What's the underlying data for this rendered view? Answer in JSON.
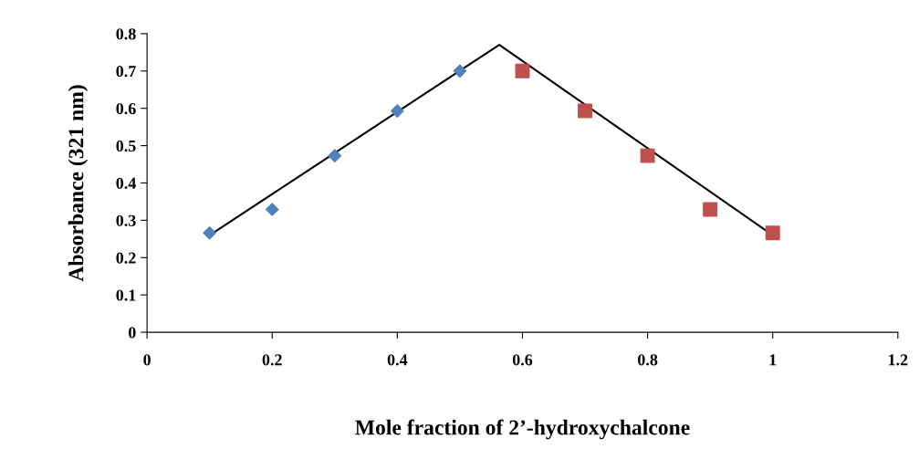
{
  "chart_data": {
    "type": "scatter",
    "xlabel": "Mole fraction of 2’-hydroxychalcone",
    "ylabel": "Absorbance (321 nm)",
    "xlim": [
      0,
      1.2
    ],
    "xticks": [
      0,
      0.2,
      0.4,
      0.6,
      0.8,
      1,
      1.2
    ],
    "ylim": [
      0,
      0.8
    ],
    "yticks": [
      0,
      0.1,
      0.2,
      0.3,
      0.4,
      0.5,
      0.6,
      0.7,
      0.8
    ],
    "grid": false,
    "legend": false,
    "series": [
      {
        "marker": "diamond",
        "color": "#4f81bd",
        "x": [
          0.1,
          0.2,
          0.3,
          0.4,
          0.5
        ],
        "values": [
          0.266,
          0.329,
          0.473,
          0.593,
          0.7
        ]
      },
      {
        "marker": "square",
        "color": "#c0504d",
        "x": [
          0.6,
          0.7,
          0.8,
          0.9,
          1.0
        ],
        "values": [
          0.7,
          0.593,
          0.473,
          0.329,
          0.266
        ]
      },
      {
        "type": "line",
        "marker": "none",
        "line_style": "solid",
        "color": "#000000",
        "x": [
          0.1,
          0.563,
          1.0
        ],
        "values": [
          0.26,
          0.77,
          0.26
        ]
      }
    ]
  }
}
